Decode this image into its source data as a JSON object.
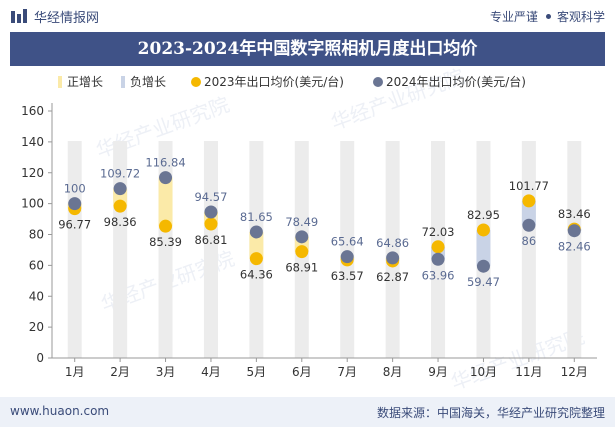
{
  "header": {
    "logo_text": "华经情报网",
    "tagline_a": "专业严谨",
    "tagline_b": "客观科学"
  },
  "watermark": "华经产业研究院",
  "footer": {
    "url": "www.huaon.com",
    "source": "数据来源：中国海关，华经产业研究院整理"
  },
  "colors": {
    "brand": "#3f5287",
    "positive_bar": "#fbeaa8",
    "negative_bar": "#c9d3e6",
    "series_2023": "#f5b800",
    "series_2024": "#6a7593",
    "grid_column": "#ececec"
  },
  "chart_data": {
    "type": "line",
    "title": "2023-2024年中国数字照相机月度出口均价",
    "categories": [
      "1月",
      "2月",
      "3月",
      "4月",
      "5月",
      "6月",
      "7月",
      "8月",
      "9月",
      "10月",
      "11月",
      "12月"
    ],
    "series": [
      {
        "name": "2023年出口均价(美元/台)",
        "values": [
          96.77,
          98.36,
          85.39,
          86.81,
          64.36,
          68.91,
          63.57,
          62.87,
          72.03,
          82.95,
          101.77,
          83.46
        ]
      },
      {
        "name": "2024年出口均价(美元/台)",
        "values": [
          100,
          109.72,
          116.84,
          94.57,
          81.65,
          78.49,
          65.64,
          64.86,
          63.96,
          59.47,
          86,
          82.46
        ]
      }
    ],
    "legend": [
      "正增长",
      "负增长",
      "2023年出口均价(美元/台)",
      "2024年出口均价(美元/台)"
    ],
    "legend_position": "top",
    "ylim": [
      0,
      160
    ],
    "yticks": [
      0,
      20,
      40,
      60,
      80,
      100,
      120,
      140,
      160
    ],
    "grid": false
  }
}
